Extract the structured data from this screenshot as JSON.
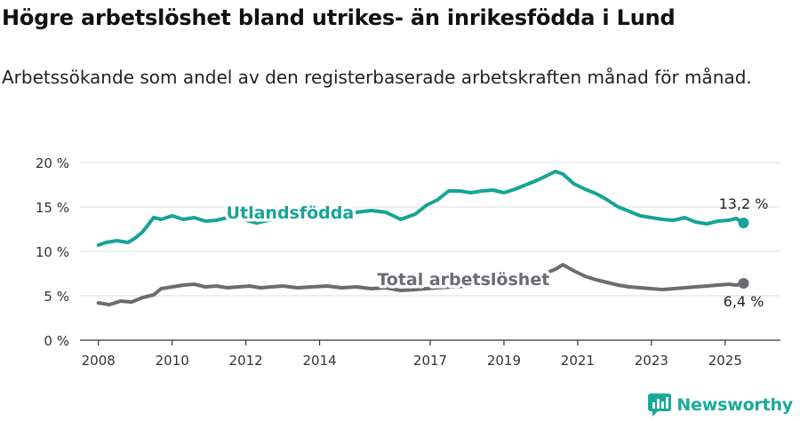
{
  "title": "Högre arbetslöshet bland utrikes- än inrikesfödda i Lund",
  "subtitle": "Arbetssökande som andel av den registerbaserade arbetskraften månad för månad.",
  "logo_text": "Newsworthy",
  "colors": {
    "utlandsfodda": "#17a398",
    "total": "#6b6b72",
    "grid": "#dcdcdc",
    "axis": "#333333"
  },
  "chart_data": {
    "type": "line",
    "title": "Högre arbetslöshet bland utrikes- än inrikesfödda i Lund",
    "subtitle": "Arbetssökande som andel av den registerbaserade arbetskraften månad för månad.",
    "xlabel": "",
    "ylabel": "",
    "xlim": [
      2007.5,
      2026.5
    ],
    "ylim": [
      0,
      20
    ],
    "y_ticks": [
      0,
      5,
      10,
      15,
      20
    ],
    "y_tick_labels": [
      "0 %",
      "5 %",
      "10 %",
      "15 %",
      "20 %"
    ],
    "x_ticks": [
      2008,
      2010,
      2012,
      2014,
      2017,
      2019,
      2021,
      2023,
      2025
    ],
    "x_tick_labels": [
      "2008",
      "2010",
      "2012",
      "2014",
      "2017",
      "2019",
      "2021",
      "2023",
      "2025"
    ],
    "grid": true,
    "series": [
      {
        "name": "Utlandsfödda",
        "color": "#17a398",
        "end_label": "13,2 %",
        "x": [
          2008.0,
          2008.2,
          2008.5,
          2008.8,
          2009.0,
          2009.2,
          2009.5,
          2009.7,
          2010.0,
          2010.3,
          2010.6,
          2010.9,
          2011.2,
          2011.5,
          2011.8,
          2012.0,
          2012.3,
          2012.6,
          2013.0,
          2013.4,
          2013.8,
          2014.2,
          2014.6,
          2015.0,
          2015.4,
          2015.8,
          2016.2,
          2016.6,
          2016.9,
          2017.2,
          2017.5,
          2017.8,
          2018.1,
          2018.4,
          2018.7,
          2019.0,
          2019.3,
          2019.6,
          2019.9,
          2020.2,
          2020.4,
          2020.6,
          2020.9,
          2021.2,
          2021.5,
          2021.8,
          2022.1,
          2022.4,
          2022.7,
          2023.0,
          2023.3,
          2023.6,
          2023.9,
          2024.2,
          2024.5,
          2024.8,
          2025.1,
          2025.3,
          2025.5
        ],
        "y": [
          10.7,
          11.0,
          11.2,
          11.0,
          11.5,
          12.2,
          13.8,
          13.6,
          14.0,
          13.6,
          13.8,
          13.4,
          13.5,
          13.8,
          14.0,
          13.5,
          13.2,
          13.5,
          13.8,
          13.6,
          14.0,
          14.3,
          14.0,
          14.4,
          14.6,
          14.4,
          13.6,
          14.2,
          15.2,
          15.8,
          16.8,
          16.8,
          16.6,
          16.8,
          16.9,
          16.6,
          17.0,
          17.5,
          18.0,
          18.6,
          19.0,
          18.7,
          17.6,
          17.0,
          16.5,
          15.8,
          15.0,
          14.5,
          14.0,
          13.8,
          13.6,
          13.5,
          13.8,
          13.3,
          13.1,
          13.4,
          13.5,
          13.7,
          13.2
        ]
      },
      {
        "name": "Total arbetslöshet",
        "color": "#6b6b72",
        "end_label": "6,4 %",
        "x": [
          2008.0,
          2008.3,
          2008.6,
          2008.9,
          2009.2,
          2009.5,
          2009.7,
          2010.0,
          2010.3,
          2010.6,
          2010.9,
          2011.2,
          2011.5,
          2011.8,
          2012.1,
          2012.4,
          2012.7,
          2013.0,
          2013.4,
          2013.8,
          2014.2,
          2014.6,
          2015.0,
          2015.4,
          2015.8,
          2016.2,
          2016.6,
          2016.9,
          2017.2,
          2017.6,
          2018.0,
          2018.4,
          2018.8,
          2019.2,
          2019.6,
          2020.0,
          2020.4,
          2020.6,
          2020.9,
          2021.2,
          2021.5,
          2021.8,
          2022.1,
          2022.4,
          2022.7,
          2023.0,
          2023.3,
          2023.6,
          2023.9,
          2024.2,
          2024.5,
          2024.8,
          2025.1,
          2025.3,
          2025.5
        ],
        "y": [
          4.2,
          4.0,
          4.4,
          4.3,
          4.8,
          5.1,
          5.8,
          6.0,
          6.2,
          6.3,
          6.0,
          6.1,
          5.9,
          6.0,
          6.1,
          5.9,
          6.0,
          6.1,
          5.9,
          6.0,
          6.1,
          5.9,
          6.0,
          5.8,
          5.9,
          5.6,
          5.7,
          5.8,
          5.9,
          6.0,
          6.1,
          6.4,
          6.9,
          6.2,
          6.8,
          7.3,
          8.0,
          8.5,
          7.8,
          7.2,
          6.8,
          6.5,
          6.2,
          6.0,
          5.9,
          5.8,
          5.7,
          5.8,
          5.9,
          6.0,
          6.1,
          6.2,
          6.3,
          6.2,
          6.4
        ]
      }
    ],
    "annotations": [
      {
        "text": "Utlandsfödda",
        "series": "Utlandsfödda",
        "x": 2013.2,
        "y": 14.3
      },
      {
        "text": "Total arbetslöshet",
        "series": "Total arbetslöshet",
        "x": 2017.9,
        "y": 6.8
      }
    ]
  }
}
